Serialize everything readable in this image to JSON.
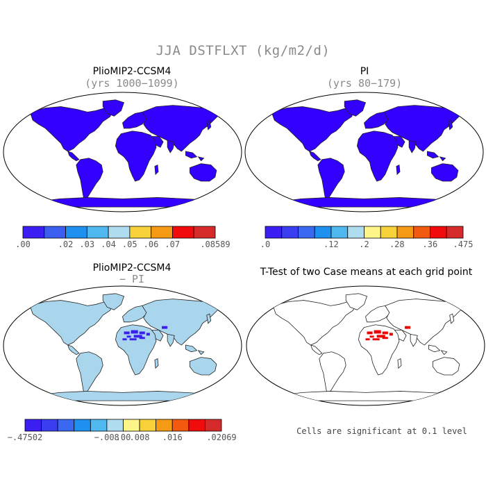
{
  "figure": {
    "title": "JJA DSTFLXT (kg/m2/d)"
  },
  "panels": [
    {
      "id": "top-left",
      "title": "PlioMIP2-CCSM4",
      "subtitle": "(yrs 1000−1099)",
      "land_fill": "#3300ff",
      "colorbar": {
        "colors": [
          "#3b1ff2",
          "#3b5ef0",
          "#1e90f0",
          "#4fb8ee",
          "#b0dcef",
          "#f7d13a",
          "#f49a14",
          "#f00c0c",
          "#d42a2a"
        ],
        "ticks": [
          ".00",
          ".02",
          ".03",
          ".04",
          ".05",
          ".06",
          ".07",
          ".08589"
        ]
      }
    },
    {
      "id": "top-right",
      "title": "PI",
      "subtitle": "(yrs 80−179)",
      "land_fill": "#3300ff",
      "colorbar": {
        "colors": [
          "#3b1ff2",
          "#3b3ef0",
          "#3b68f0",
          "#1e90f0",
          "#4fb8ee",
          "#b0dcef",
          "#fff68a",
          "#f7d13a",
          "#f49a14",
          "#f25a10",
          "#f00c0c",
          "#d42a2a"
        ],
        "ticks": [
          ".0",
          ".12",
          ".2",
          ".28",
          ".36",
          ".475"
        ]
      }
    },
    {
      "id": "bottom-left",
      "title": "PlioMIP2-CCSM4",
      "subtitle": "− PI",
      "land_fill": "#a9d6ec",
      "colorbar": {
        "colors": [
          "#3b1ff2",
          "#3b3ef0",
          "#3b68f0",
          "#1e90f0",
          "#4fb8ee",
          "#b0dcef",
          "#fff68a",
          "#f7d13a",
          "#f49a14",
          "#f25a10",
          "#f00c0c",
          "#d42a2a"
        ],
        "ticks": [
          "−.47502",
          "−.008",
          ".00",
          ".008",
          ".016",
          ".02069"
        ]
      }
    },
    {
      "id": "bottom-right",
      "title": "T-Test of two Case means at each grid point",
      "land_fill": "#ffffff",
      "note": "Cells are significant at 0.1 level"
    }
  ]
}
